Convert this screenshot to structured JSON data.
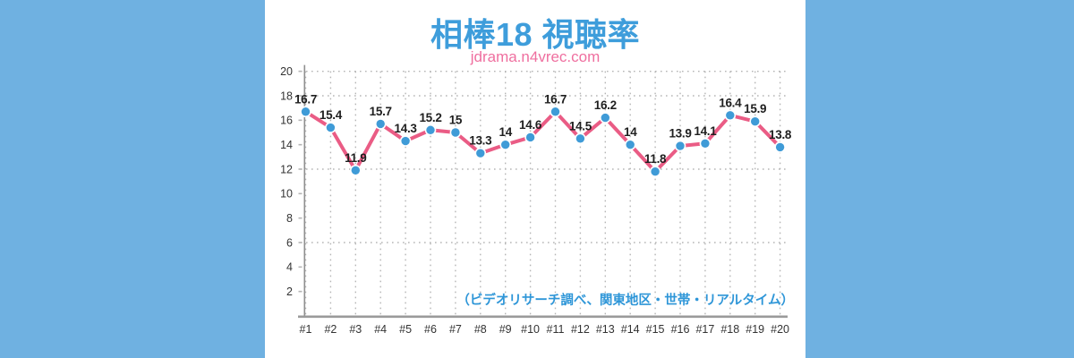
{
  "layout": {
    "background_color": "#6fb1e1",
    "panel_color": "#ffffff"
  },
  "header": {
    "title": "相棒18 視聴率",
    "subtitle": "jdrama.n4vrec.com",
    "title_color": "#3e9ddb",
    "subtitle_color": "#ef6f9f"
  },
  "chart_data": {
    "type": "line",
    "title": "相棒18 視聴率",
    "categories": [
      "#1",
      "#2",
      "#3",
      "#4",
      "#5",
      "#6",
      "#7",
      "#8",
      "#9",
      "#10",
      "#11",
      "#12",
      "#13",
      "#14",
      "#15",
      "#16",
      "#17",
      "#18",
      "#19",
      "#20"
    ],
    "series": [
      {
        "name": "視聴率",
        "values": [
          16.7,
          15.4,
          11.9,
          15.7,
          14.3,
          15.2,
          15,
          13.3,
          14,
          14.6,
          16.7,
          14.5,
          16.2,
          14,
          11.8,
          13.9,
          14.1,
          16.4,
          15.9,
          13.8
        ]
      }
    ],
    "ylim": [
      0,
      20
    ],
    "yticks": [
      2,
      4,
      6,
      8,
      10,
      12,
      14,
      16,
      18,
      20
    ],
    "gridline_values": [
      6,
      12,
      18,
      20
    ],
    "grid_style": "dotted",
    "legend": "none",
    "data_labels": true,
    "annotation": "（ビデオリサーチ調べ、関東地区・世帯・リアルタイム）",
    "colors": {
      "line": "#ea5c85",
      "marker": "#3f9bd7",
      "marker_halo": "#ffffff",
      "data_label": "#1f1f1f",
      "axis_label": "#333333",
      "grid": "#b5b5b5",
      "axis": "#9a9a9a",
      "annotation": "#2e96d8"
    }
  }
}
